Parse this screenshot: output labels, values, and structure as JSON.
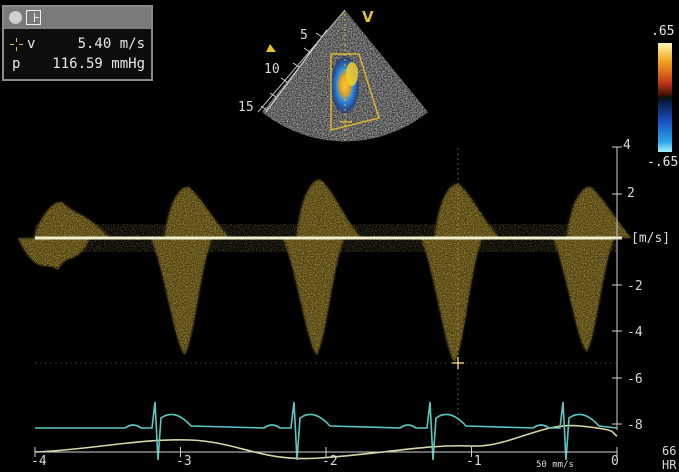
{
  "measurement": {
    "velocity_label": "v",
    "velocity_value": "5.40 m/s",
    "pressure_label": "p",
    "pressure_value": "116.59 mmHg"
  },
  "sector": {
    "orientation_marker": "V",
    "depth_labels": [
      "5",
      "10",
      "15"
    ]
  },
  "color_scale": {
    "top": ".65",
    "bottom": "-.65"
  },
  "velocity_axis": {
    "unit": "[m/s]",
    "ticks": [
      "4",
      "2",
      "-2",
      "-4",
      "-6",
      "-8"
    ]
  },
  "time_axis": {
    "ticks": [
      "-4",
      "-3",
      "-2",
      "-1",
      "0"
    ],
    "sweep_speed": "50 mm/s"
  },
  "heart_rate": {
    "value": "66",
    "unit": "HR"
  },
  "colors": {
    "doppler": "#d9b530",
    "baseline": "#f0efcf",
    "ecg": "#5cc7c2",
    "respiration": "#d8d7a3",
    "measurement_cursor": "#ffe08a",
    "label_text": "#d8d8d8"
  }
}
